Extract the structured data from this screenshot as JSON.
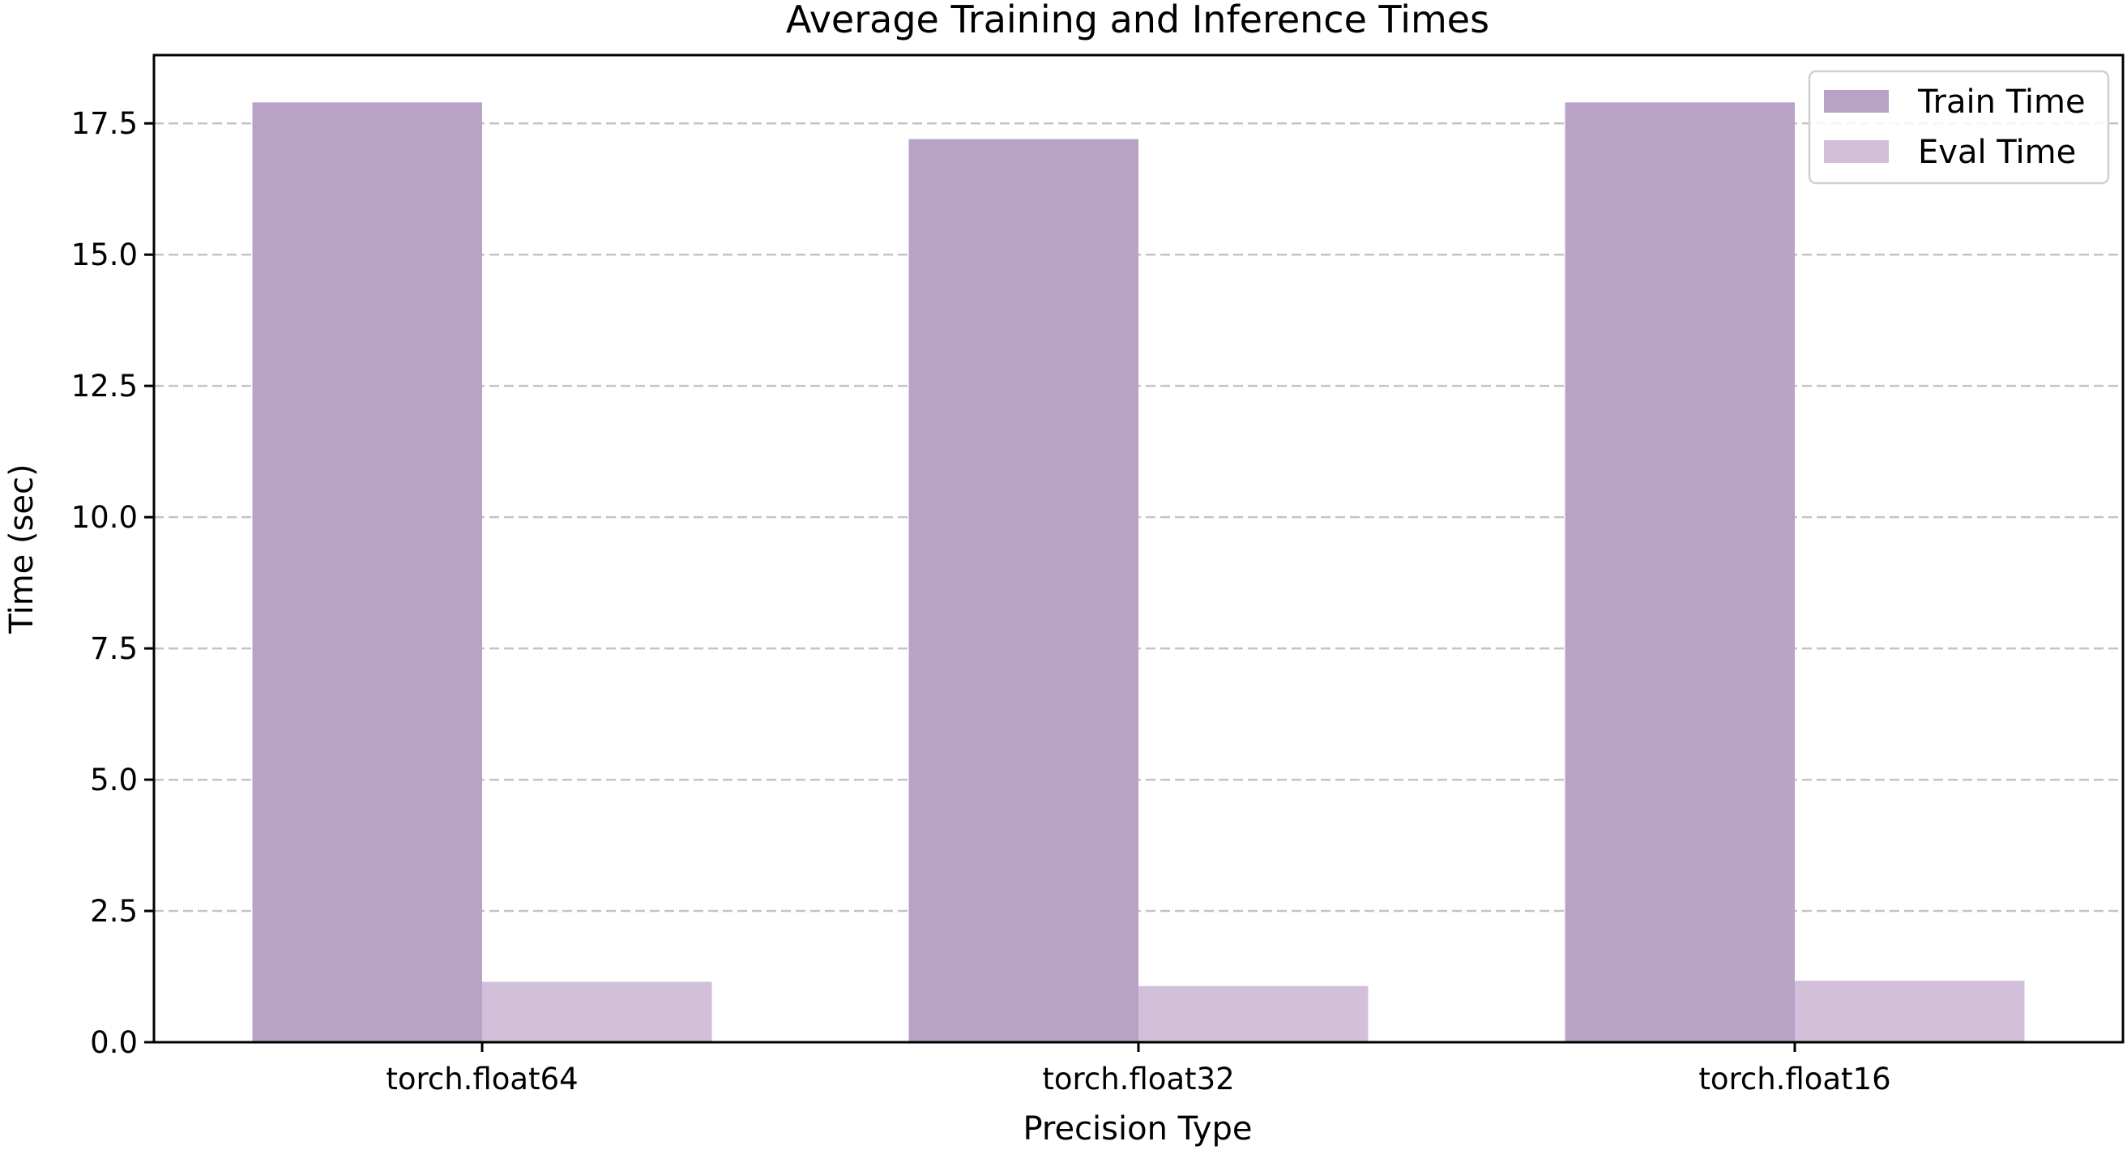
{
  "chart_data": {
    "type": "bar",
    "title": "Average Training and Inference Times",
    "xlabel": "Precision Type",
    "ylabel": "Time (sec)",
    "categories": [
      "torch.float64",
      "torch.float32",
      "torch.float16"
    ],
    "series": [
      {
        "name": "Train Time",
        "color": "#b8a3c6",
        "values": [
          17.9,
          17.2,
          17.9
        ]
      },
      {
        "name": "Eval Time",
        "color": "#d2bfda",
        "values": [
          1.15,
          1.07,
          1.17
        ]
      }
    ],
    "ylim": [
      0,
      18.8
    ],
    "yticks": [
      0.0,
      2.5,
      5.0,
      7.5,
      10.0,
      12.5,
      15.0,
      17.5
    ],
    "ytick_labels": [
      "0.0",
      "2.5",
      "5.0",
      "7.5",
      "10.0",
      "12.5",
      "15.0",
      "17.5"
    ],
    "grid": "y-dashed",
    "legend_position": "top-right"
  }
}
